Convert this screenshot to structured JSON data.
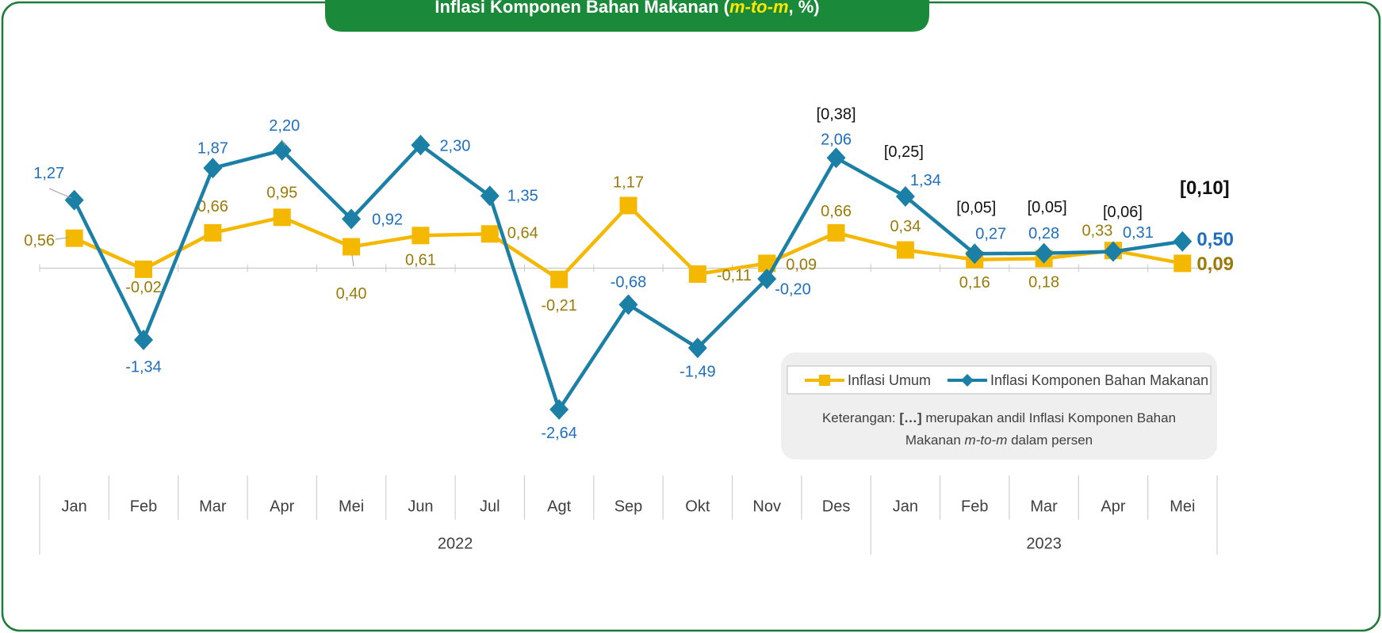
{
  "chart_data": {
    "type": "line",
    "title_parts": [
      "Inflasi Komponen Bahan Makanan (",
      "m-to-m",
      ", %)"
    ],
    "categories": [
      "Jan",
      "Feb",
      "Mar",
      "Apr",
      "Mei",
      "Jun",
      "Jul",
      "Agt",
      "Sep",
      "Okt",
      "Nov",
      "Des",
      "Jan",
      "Feb",
      "Mar",
      "Apr",
      "Mei"
    ],
    "group_labels": [
      "2022",
      null,
      null,
      null,
      null,
      null,
      null,
      null,
      null,
      null,
      null,
      null,
      "2023",
      null,
      null,
      null,
      null
    ],
    "series": [
      {
        "name": "Inflasi Umum",
        "color": "#f5b800",
        "label_color": "#9a7b0a",
        "values": [
          0.56,
          -0.02,
          0.66,
          0.95,
          0.4,
          0.61,
          0.64,
          -0.21,
          1.17,
          -0.11,
          0.09,
          0.66,
          0.34,
          0.16,
          0.18,
          0.33,
          0.09
        ],
        "value_labels": [
          "0,56",
          "-0,02",
          "0,66",
          "0,95",
          "0,40",
          "0,61",
          "0,64",
          "-0,21",
          "1,17",
          "-0,11",
          "0,09",
          "0,66",
          "0,34",
          "0,16",
          "0,18",
          "0,33",
          "0,09"
        ]
      },
      {
        "name": "Inflasi Komponen Bahan Makanan",
        "color": "#1b7fa6",
        "label_color": "#1f6fbf",
        "values": [
          1.27,
          -1.34,
          1.87,
          2.2,
          0.92,
          2.3,
          1.35,
          -2.64,
          -0.68,
          -1.49,
          -0.2,
          2.06,
          1.34,
          0.27,
          0.28,
          0.31,
          0.5
        ],
        "value_labels": [
          "1,27",
          "-1,34",
          "1,87",
          "2,20",
          "0,92",
          "2,30",
          "1,35",
          "-2,64",
          "-0,68",
          "-1,49",
          "-0,20",
          "2,06",
          "1,34",
          "0,27",
          "0,28",
          "0,31",
          "0,50"
        ]
      }
    ],
    "contribution_labels": [
      null,
      null,
      null,
      null,
      null,
      null,
      null,
      null,
      null,
      null,
      null,
      "[0,38]",
      "[0,25]",
      "[0,05]",
      "[0,05]",
      "[0,06]",
      "[0,10]"
    ],
    "note_lines": [
      [
        "Keterangan: ",
        "[…]",
        " merupakan andil Inflasi Komponen Bahan"
      ],
      [
        "Makanan ",
        "m-to-m",
        " dalam persen"
      ]
    ],
    "ylim": [
      -3.5,
      3.5
    ]
  }
}
